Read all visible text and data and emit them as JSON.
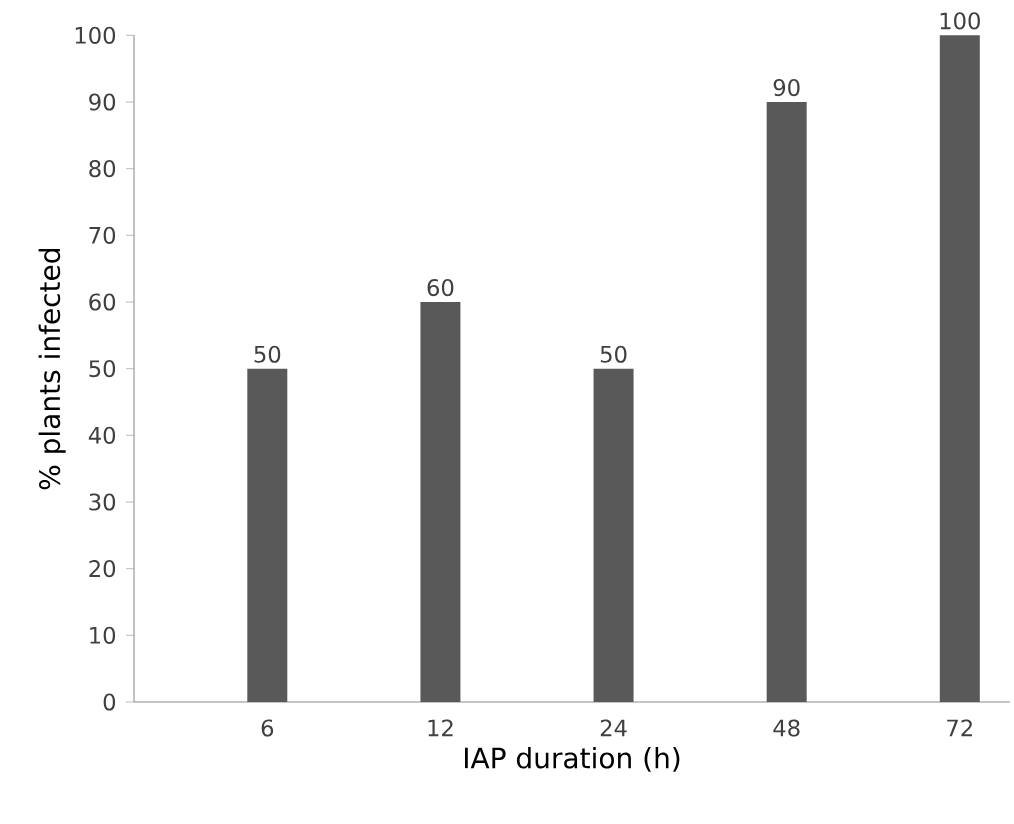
{
  "chart_data": {
    "type": "bar",
    "categories": [
      "6",
      "12",
      "24",
      "48",
      "72"
    ],
    "values": [
      50,
      60,
      50,
      90,
      100
    ],
    "color": "#595959",
    "xlabel": "IAP duration (h)",
    "ylabel": "% plants infected",
    "ylim": [
      0,
      100
    ],
    "yticks": [
      0,
      10,
      20,
      30,
      40,
      50,
      60,
      70,
      80,
      90,
      100
    ],
    "data_labels": true
  }
}
